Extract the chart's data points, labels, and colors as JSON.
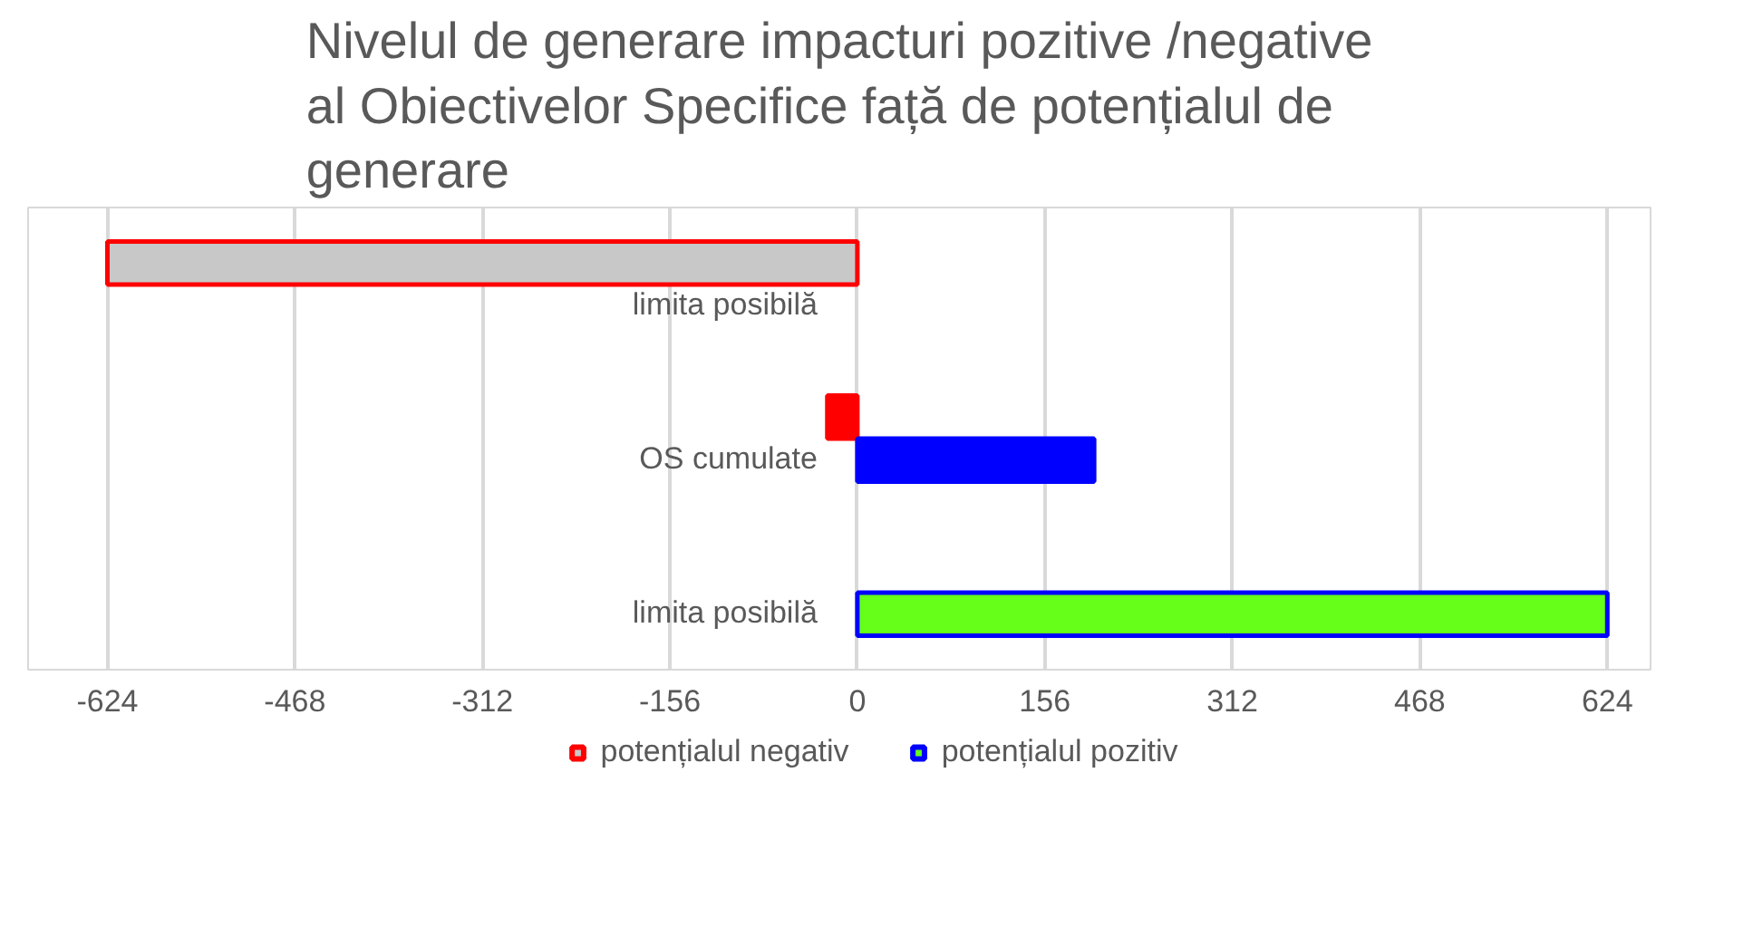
{
  "chart_data": {
    "type": "bar",
    "orientation": "horizontal",
    "title": "Nivelul de generare impacturi pozitive /negative al Obiectivelor Specifice față de potențialul de generare",
    "categories": [
      "limita posibilă",
      "OS cumulate",
      "limita posibilă"
    ],
    "series": [
      {
        "name": "potențialul negativ",
        "color": "#ff0000",
        "colors": [
          "#c8c8c8",
          "#ff0000",
          null
        ],
        "values": [
          -624,
          -25,
          null
        ]
      },
      {
        "name": "potențialul pozitiv",
        "color": "#0000ff",
        "colors": [
          null,
          "#0000ff",
          "#66ff1a"
        ],
        "values": [
          null,
          197,
          624
        ]
      }
    ],
    "xlim": [
      -690,
      660
    ],
    "xticks": [
      -624,
      -468,
      -312,
      -156,
      0,
      156,
      312,
      468,
      624
    ],
    "grid": "x",
    "legend": "bottom"
  }
}
